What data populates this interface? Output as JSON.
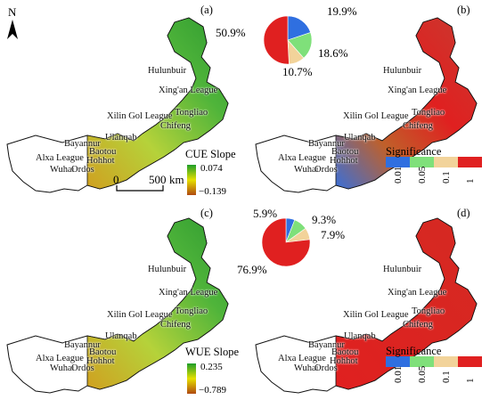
{
  "panels": [
    {
      "id": "a",
      "label": "(a)"
    },
    {
      "id": "b",
      "label": "(b)"
    },
    {
      "id": "c",
      "label": "(c)"
    },
    {
      "id": "d",
      "label": "(d)"
    }
  ],
  "north_label": "N",
  "places": [
    "Hulunbuir",
    "Xing'an League",
    "Xilin Gol League",
    "Tongliao",
    "Chifeng",
    "Ulanqab",
    "Bayannur",
    "Baotou",
    "Hohhot",
    "Alxa League",
    "Wuhai",
    "Ordos"
  ],
  "scale_bar": {
    "ticks": [
      "0",
      "500"
    ],
    "unit": "km"
  },
  "cue_legend": {
    "title": "CUE Slope",
    "max": "0.074",
    "min": "−0.139"
  },
  "wue_legend": {
    "title": "WUE Slope",
    "max": "0.235",
    "min": "−0.789"
  },
  "significance_legend": {
    "title": "Significance",
    "ticks": [
      "0.01",
      "0.05",
      "0.1",
      "1"
    ],
    "colors": [
      "#2f6fe0",
      "#7fe07a",
      "#f2d39a",
      "#e02020"
    ]
  },
  "chart_data": [
    {
      "type": "pie",
      "panel": "b",
      "values": [
        19.9,
        18.6,
        10.7,
        50.9
      ],
      "labels": [
        "19.9%",
        "18.6%",
        "10.7%",
        "50.9%"
      ],
      "colors": [
        "#2f6fe0",
        "#7fe07a",
        "#f2d39a",
        "#e02020"
      ]
    },
    {
      "type": "pie",
      "panel": "d",
      "values": [
        5.9,
        9.3,
        7.9,
        76.9
      ],
      "labels": [
        "5.9%",
        "9.3%",
        "7.9%",
        "76.9%"
      ],
      "colors": [
        "#2f6fe0",
        "#7fe07a",
        "#f2d39a",
        "#e02020"
      ]
    }
  ]
}
